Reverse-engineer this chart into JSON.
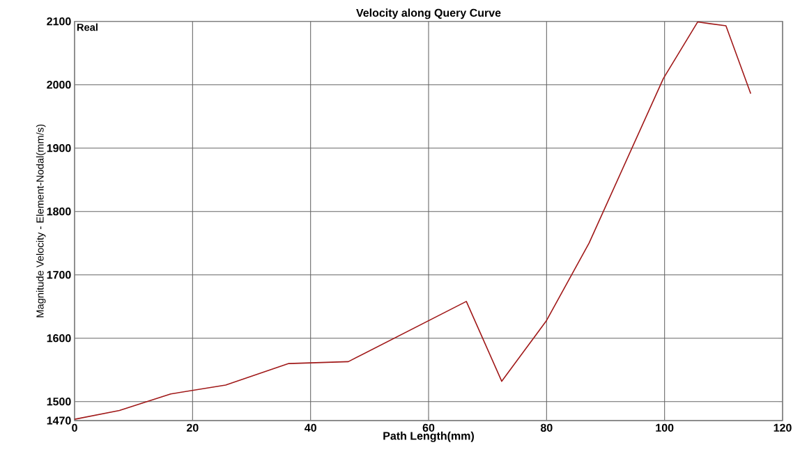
{
  "chart_data": {
    "type": "line",
    "title": "Velocity along Query Curve",
    "xlabel": "Path Length(mm)",
    "ylabel": "Magnitude Velocity - Element-Nodal(mm/s)",
    "annotations": [
      "Real"
    ],
    "x": [
      0,
      7.6,
      16.3,
      25.6,
      36.3,
      46.4,
      66.4,
      72.4,
      80,
      87.2,
      99.8,
      105.6,
      110.4,
      114.6
    ],
    "series": [
      {
        "color": "#a01818",
        "values": [
          1472,
          1486,
          1512,
          1526,
          1560,
          1563,
          1658,
          1532,
          1628,
          1750,
          2010,
          2099,
          2093,
          1986
        ]
      }
    ],
    "xlim": [
      0,
      120
    ],
    "ylim": [
      1470,
      2100
    ],
    "xticks": [
      0,
      20,
      40,
      60,
      80,
      100,
      120
    ],
    "yticks": [
      1470,
      1500,
      1600,
      1700,
      1800,
      1900,
      2000,
      2100
    ],
    "grid": true,
    "marker": "none",
    "line_style": "solid"
  }
}
